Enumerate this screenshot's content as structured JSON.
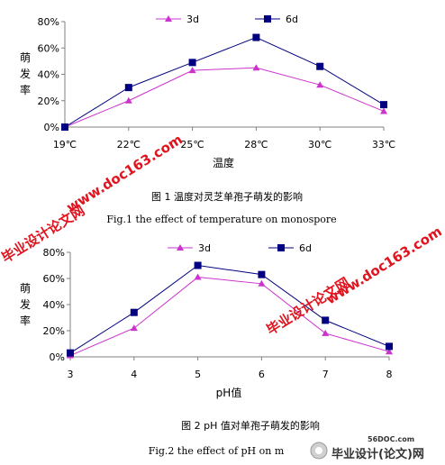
{
  "chart_data": [
    {
      "type": "line",
      "categories": [
        "19℃",
        "22℃",
        "25℃",
        "28℃",
        "30℃",
        "33℃"
      ],
      "series": [
        {
          "name": "3d",
          "values": [
            0,
            20,
            43,
            45,
            32,
            12
          ],
          "color": "#cc33cc",
          "marker": "triangle"
        },
        {
          "name": "6d",
          "values": [
            0,
            30,
            49,
            68,
            46,
            17
          ],
          "color": "#000080",
          "marker": "square"
        }
      ],
      "xlabel": "温度",
      "ylabel": "萌发率",
      "ylim": [
        0,
        80
      ],
      "yticks": [
        "0%",
        "20%",
        "40%",
        "60%",
        "80%"
      ],
      "legend": "top",
      "grid": false,
      "caption_cn": "图 1    温度对灵芝单孢子萌发的影响",
      "caption_en": "Fig.1 the effect of temperature on monospore"
    },
    {
      "type": "line",
      "categories": [
        "3",
        "4",
        "5",
        "6",
        "7",
        "8"
      ],
      "series": [
        {
          "name": "3d",
          "values": [
            1,
            22,
            61,
            56,
            18,
            4
          ],
          "color": "#cc33cc",
          "marker": "triangle"
        },
        {
          "name": "6d",
          "values": [
            3,
            34,
            70,
            63,
            28,
            8
          ],
          "color": "#000080",
          "marker": "square"
        }
      ],
      "xlabel": "pH值",
      "ylabel": "萌发率",
      "ylim": [
        0,
        80
      ],
      "yticks": [
        "0%",
        "20%",
        "40%",
        "60%",
        "80%"
      ],
      "legend": "top",
      "grid": false,
      "caption_cn": "图 2    pH 值对单孢子萌发的影响",
      "caption_en": "Fig.2    the effect of pH on m"
    }
  ],
  "watermarks": {
    "site": "www.doc163.com",
    "cn": "毕业设计论文网",
    "logo_site": "56DOC.com",
    "logo_cn": "毕业设计(论文)网"
  }
}
